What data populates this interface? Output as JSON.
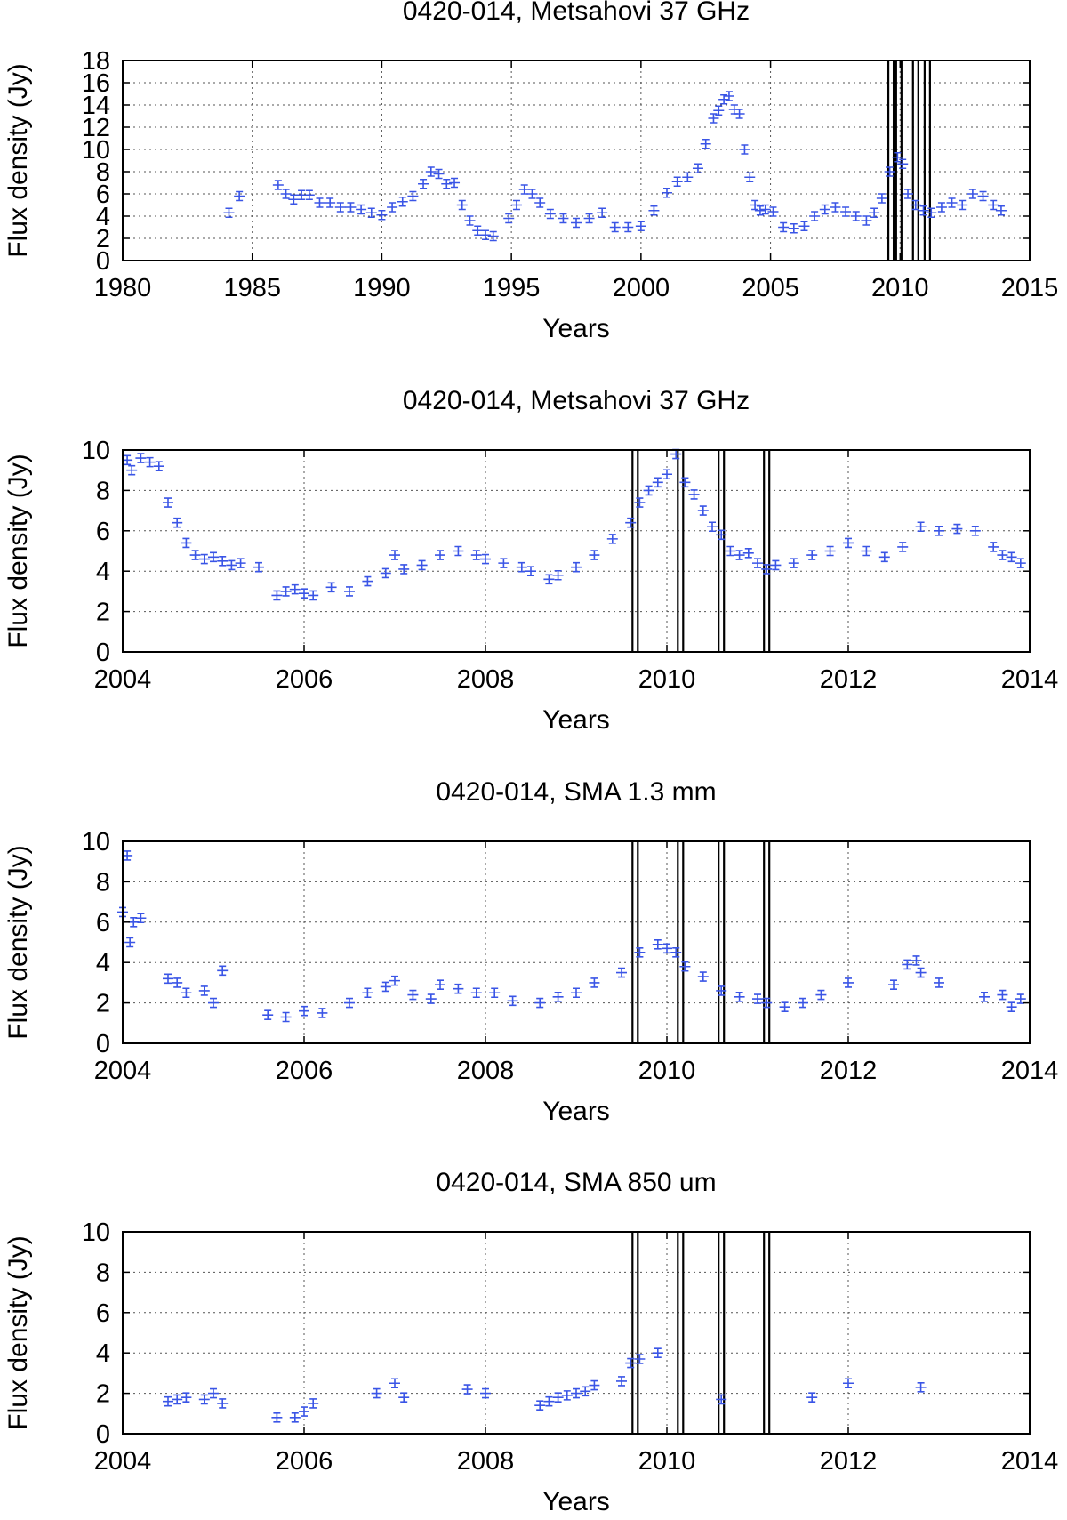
{
  "chart_data": [
    {
      "type": "scatter",
      "title": "0420-014, Metsahovi 37 GHz",
      "xlabel": "Years",
      "ylabel": "Flux density (Jy)",
      "xlim": [
        1980,
        2015
      ],
      "ylim": [
        0,
        18
      ],
      "xticks": [
        1980,
        1985,
        1990,
        1995,
        2000,
        2005,
        2010,
        2015
      ],
      "yticks": [
        0,
        2,
        4,
        6,
        8,
        10,
        12,
        14,
        16,
        18
      ],
      "grid": true,
      "vertical_lines": [
        2009.65,
        2009.95,
        2010.6,
        2011.05
      ],
      "series": [
        {
          "name": "Metsahovi 37 GHz",
          "x": [
            1984.1,
            1984.5,
            1986.0,
            1986.3,
            1986.6,
            1986.9,
            1987.2,
            1987.6,
            1988.0,
            1988.4,
            1988.8,
            1989.2,
            1989.6,
            1990.0,
            1990.4,
            1990.8,
            1991.2,
            1991.6,
            1991.9,
            1992.2,
            1992.5,
            1992.8,
            1993.1,
            1993.4,
            1993.7,
            1994.0,
            1994.3,
            1994.9,
            1995.2,
            1995.5,
            1995.8,
            1996.1,
            1996.5,
            1997.0,
            1997.5,
            1998.0,
            1998.5,
            1999.0,
            1999.5,
            2000.0,
            2000.5,
            2001.0,
            2001.4,
            2001.8,
            2002.2,
            2002.5,
            2002.8,
            2003.0,
            2003.2,
            2003.4,
            2003.6,
            2003.8,
            2004.0,
            2004.2,
            2004.4,
            2004.6,
            2004.8,
            2005.1,
            2005.5,
            2005.9,
            2006.3,
            2006.7,
            2007.1,
            2007.5,
            2007.9,
            2008.3,
            2008.7,
            2009.0,
            2009.3,
            2009.6,
            2009.9,
            2010.1,
            2010.3,
            2010.6,
            2010.9,
            2011.2,
            2011.6,
            2012.0,
            2012.4,
            2012.8,
            2013.2,
            2013.6,
            2013.9
          ],
          "y": [
            4.3,
            5.8,
            6.8,
            6.0,
            5.5,
            5.9,
            5.9,
            5.2,
            5.2,
            4.8,
            4.8,
            4.6,
            4.3,
            4.1,
            4.8,
            5.3,
            5.8,
            6.9,
            8.0,
            7.8,
            6.9,
            7.0,
            5.0,
            3.6,
            2.7,
            2.3,
            2.2,
            3.8,
            5.0,
            6.4,
            6.0,
            5.2,
            4.2,
            3.8,
            3.4,
            3.8,
            4.3,
            3.0,
            3.0,
            3.1,
            4.5,
            6.1,
            7.1,
            7.5,
            8.3,
            10.5,
            12.8,
            13.5,
            14.5,
            14.8,
            13.6,
            13.2,
            10.0,
            7.5,
            5.0,
            4.5,
            4.6,
            4.4,
            3.0,
            2.9,
            3.1,
            4.0,
            4.6,
            4.8,
            4.4,
            4.0,
            3.6,
            4.3,
            5.6,
            8.0,
            9.3,
            8.7,
            6.0,
            5.0,
            4.5,
            4.3,
            4.8,
            5.2,
            5.0,
            6.0,
            5.8,
            5.0,
            4.5
          ]
        }
      ]
    },
    {
      "type": "scatter",
      "title": "0420-014, Metsahovi 37 GHz",
      "xlabel": "Years",
      "ylabel": "Flux density (Jy)",
      "xlim": [
        2004,
        2014
      ],
      "ylim": [
        0,
        10
      ],
      "xticks": [
        2004,
        2006,
        2008,
        2010,
        2012,
        2014
      ],
      "yticks": [
        0,
        2,
        4,
        6,
        8,
        10
      ],
      "grid": true,
      "vertical_lines": [
        2009.65,
        2010.15,
        2010.6,
        2011.1
      ],
      "series": [
        {
          "name": "Metsahovi 37 GHz",
          "x": [
            2004.05,
            2004.1,
            2004.2,
            2004.3,
            2004.4,
            2004.5,
            2004.6,
            2004.7,
            2004.8,
            2004.9,
            2005.0,
            2005.1,
            2005.2,
            2005.3,
            2005.5,
            2005.7,
            2005.8,
            2005.9,
            2006.0,
            2006.1,
            2006.3,
            2006.5,
            2006.7,
            2006.9,
            2007.0,
            2007.1,
            2007.3,
            2007.5,
            2007.7,
            2007.9,
            2008.0,
            2008.2,
            2008.4,
            2008.5,
            2008.7,
            2008.8,
            2009.0,
            2009.2,
            2009.4,
            2009.6,
            2009.7,
            2009.8,
            2009.9,
            2010.0,
            2010.1,
            2010.2,
            2010.3,
            2010.4,
            2010.5,
            2010.6,
            2010.7,
            2010.8,
            2010.9,
            2011.0,
            2011.1,
            2011.2,
            2011.4,
            2011.6,
            2011.8,
            2012.0,
            2012.2,
            2012.4,
            2012.6,
            2012.8,
            2013.0,
            2013.2,
            2013.4,
            2013.6,
            2013.7,
            2013.8,
            2013.9
          ],
          "y": [
            9.5,
            9.0,
            9.6,
            9.4,
            9.2,
            7.4,
            6.4,
            5.4,
            4.8,
            4.6,
            4.7,
            4.5,
            4.3,
            4.4,
            4.2,
            2.8,
            3.0,
            3.1,
            2.9,
            2.8,
            3.2,
            3.0,
            3.5,
            3.9,
            4.8,
            4.1,
            4.3,
            4.8,
            5.0,
            4.8,
            4.6,
            4.4,
            4.2,
            4.0,
            3.6,
            3.8,
            4.2,
            4.8,
            5.6,
            6.4,
            7.4,
            8.0,
            8.4,
            8.8,
            9.8,
            8.4,
            7.8,
            7.0,
            6.2,
            5.8,
            5.0,
            4.8,
            4.9,
            4.4,
            4.1,
            4.3,
            4.4,
            4.8,
            5.0,
            5.4,
            5.0,
            4.7,
            5.2,
            6.2,
            6.0,
            6.1,
            6.0,
            5.2,
            4.8,
            4.7,
            4.4
          ]
        }
      ]
    },
    {
      "type": "scatter",
      "title": "0420-014, SMA 1.3 mm",
      "xlabel": "Years",
      "ylabel": "Flux density (Jy)",
      "xlim": [
        2004,
        2014
      ],
      "ylim": [
        0,
        10
      ],
      "xticks": [
        2004,
        2006,
        2008,
        2010,
        2012,
        2014
      ],
      "yticks": [
        0,
        2,
        4,
        6,
        8,
        10
      ],
      "grid": true,
      "vertical_lines": [
        2009.65,
        2010.15,
        2010.6,
        2011.1
      ],
      "series": [
        {
          "name": "SMA 1.3 mm",
          "x": [
            2004.0,
            2004.05,
            2004.08,
            2004.12,
            2004.2,
            2004.5,
            2004.6,
            2004.7,
            2004.9,
            2005.0,
            2005.1,
            2005.6,
            2005.8,
            2006.0,
            2006.2,
            2006.5,
            2006.7,
            2006.9,
            2007.0,
            2007.2,
            2007.4,
            2007.5,
            2007.7,
            2007.9,
            2008.1,
            2008.3,
            2008.6,
            2008.8,
            2009.0,
            2009.2,
            2009.5,
            2009.7,
            2009.9,
            2010.0,
            2010.1,
            2010.2,
            2010.4,
            2010.6,
            2010.8,
            2011.0,
            2011.1,
            2011.3,
            2011.5,
            2011.7,
            2012.0,
            2012.5,
            2012.65,
            2012.75,
            2012.8,
            2013.0,
            2013.5,
            2013.7,
            2013.8,
            2013.9
          ],
          "y": [
            6.5,
            9.3,
            5.0,
            6.0,
            6.2,
            3.2,
            3.0,
            2.5,
            2.6,
            2.0,
            3.6,
            1.4,
            1.3,
            1.6,
            1.5,
            2.0,
            2.5,
            2.8,
            3.1,
            2.4,
            2.2,
            2.9,
            2.7,
            2.5,
            2.5,
            2.1,
            2.0,
            2.3,
            2.5,
            3.0,
            3.5,
            4.5,
            4.9,
            4.7,
            4.5,
            3.8,
            3.3,
            2.6,
            2.3,
            2.2,
            2.0,
            1.8,
            2.0,
            2.4,
            3.0,
            2.9,
            3.9,
            4.1,
            3.5,
            3.0,
            2.3,
            2.4,
            1.8,
            2.2
          ]
        }
      ]
    },
    {
      "type": "scatter",
      "title": "0420-014, SMA 850 um",
      "xlabel": "Years",
      "ylabel": "Flux density (Jy)",
      "xlim": [
        2004,
        2014
      ],
      "ylim": [
        0,
        10
      ],
      "xticks": [
        2004,
        2006,
        2008,
        2010,
        2012,
        2014
      ],
      "yticks": [
        0,
        2,
        4,
        6,
        8,
        10
      ],
      "grid": true,
      "vertical_lines": [
        2009.65,
        2010.15,
        2010.6,
        2011.1
      ],
      "series": [
        {
          "name": "SMA 850 um",
          "x": [
            2004.5,
            2004.6,
            2004.7,
            2004.9,
            2005.0,
            2005.1,
            2005.7,
            2005.9,
            2006.0,
            2006.1,
            2006.8,
            2007.0,
            2007.1,
            2007.8,
            2008.0,
            2008.6,
            2008.7,
            2008.8,
            2008.9,
            2009.0,
            2009.1,
            2009.2,
            2009.5,
            2009.6,
            2009.7,
            2009.9,
            2010.6,
            2011.6,
            2012.0,
            2012.8
          ],
          "y": [
            1.6,
            1.7,
            1.8,
            1.7,
            2.0,
            1.5,
            0.8,
            0.8,
            1.1,
            1.5,
            2.0,
            2.5,
            1.8,
            2.2,
            2.0,
            1.4,
            1.6,
            1.8,
            1.9,
            2.0,
            2.1,
            2.4,
            2.6,
            3.5,
            3.7,
            4.0,
            1.7,
            1.8,
            2.5,
            2.3
          ]
        }
      ]
    }
  ]
}
